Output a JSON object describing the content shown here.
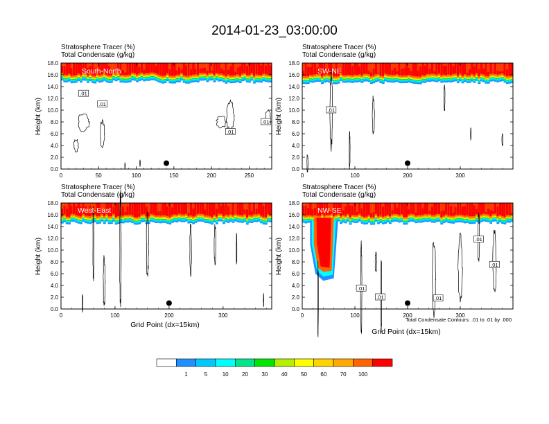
{
  "title": "2014-01-23_03:00:00",
  "subtitle_left": "Stratosphere Tracer   (%)",
  "subtitle_left2": "Total Condensate   (g/kg)",
  "ylabel": "Height (km)",
  "xlabel": "Grid Point (dx=15km)",
  "contour_note": "Total Condensate Contours: .01 to .01 by .000",
  "contour_label": ".01",
  "colors": [
    "#ffffff",
    "#1e90ff",
    "#00c8ff",
    "#00ffff",
    "#00e68c",
    "#00e600",
    "#b4f000",
    "#ffff00",
    "#ffd200",
    "#ffaa00",
    "#ff6400",
    "#ff0000"
  ],
  "colorbar_labels": [
    "1",
    "5",
    "10",
    "20",
    "30",
    "40",
    "50",
    "60",
    "70",
    "100"
  ],
  "chart_data": [
    {
      "type": "heatmap",
      "name": "South-North",
      "xlim": [
        0,
        280
      ],
      "ylim": [
        0,
        18
      ],
      "xticks": [
        "0",
        "50",
        "100",
        "150",
        "200",
        "250"
      ],
      "yticks": [
        "0.0",
        "2.0",
        "4.0",
        "6.0",
        "8.0",
        "10.0",
        "12.0",
        "14.0",
        "16.0",
        "18.0"
      ],
      "tropopause_km": 15.6,
      "marker_x": 140,
      "contour_labels_at": [
        [
          30,
          12.8
        ],
        [
          55,
          11.0
        ],
        [
          225,
          6.3
        ],
        [
          272,
          8.0
        ]
      ]
    },
    {
      "type": "heatmap",
      "name": "SW-NE",
      "xlim": [
        0,
        400
      ],
      "ylim": [
        0,
        18
      ],
      "xticks": [
        "0",
        "100",
        "200",
        "300"
      ],
      "yticks": [
        "0.0",
        "2.0",
        "4.0",
        "6.0",
        "8.0",
        "10.0",
        "12.0",
        "14.0",
        "16.0",
        "18.0"
      ],
      "tropopause_km": 15.5,
      "marker_x": 200,
      "contour_labels_at": [
        [
          55,
          10.0
        ]
      ]
    },
    {
      "type": "heatmap",
      "name": "West-East",
      "xlim": [
        0,
        390
      ],
      "ylim": [
        0,
        18
      ],
      "xticks": [
        "0",
        "100",
        "200",
        "300"
      ],
      "yticks": [
        "0.0",
        "2.0",
        "4.0",
        "6.0",
        "8.0",
        "10.0",
        "12.0",
        "14.0",
        "16.0",
        "18.0"
      ],
      "tropopause_km": 15.4,
      "marker_x": 200,
      "contour_labels_at": []
    },
    {
      "type": "heatmap",
      "name": "NW-SE",
      "xlim": [
        0,
        400
      ],
      "ylim": [
        0,
        18
      ],
      "xticks": [
        "0",
        "100",
        "200",
        "300"
      ],
      "yticks": [
        "0.0",
        "2.0",
        "4.0",
        "6.0",
        "8.0",
        "10.0",
        "12.0",
        "14.0",
        "16.0",
        "18.0"
      ],
      "tropopause_km": 15.4,
      "marker_x": 200,
      "contour_labels_at": [
        [
          112,
          3.5
        ],
        [
          148,
          2.0
        ],
        [
          258,
          1.8
        ],
        [
          335,
          11.8
        ],
        [
          365,
          7.5
        ]
      ]
    }
  ]
}
